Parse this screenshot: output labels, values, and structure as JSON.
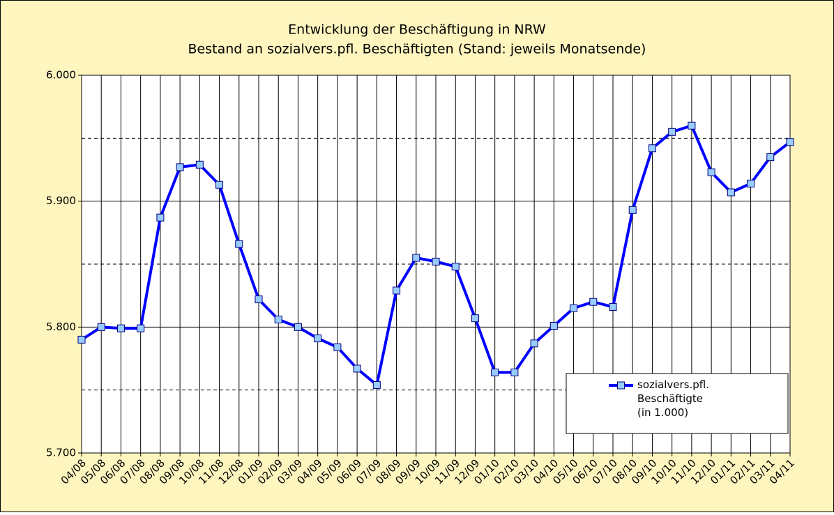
{
  "chart_data": {
    "type": "line",
    "title": "Entwicklung der Beschäftigung in NRW",
    "subtitle": "Bestand an sozialvers.pfl. Beschäftigten (Stand: jeweils Monatsende)",
    "categories": [
      "04/08",
      "05/08",
      "06/08",
      "07/08",
      "08/08",
      "09/08",
      "10/08",
      "11/08",
      "12/08",
      "01/09",
      "02/09",
      "03/09",
      "04/09",
      "05/09",
      "06/09",
      "07/09",
      "08/09",
      "09/09",
      "10/09",
      "11/09",
      "12/09",
      "01/10",
      "02/10",
      "03/10",
      "04/10",
      "05/10",
      "06/10",
      "07/10",
      "08/10",
      "09/10",
      "10/10",
      "11/10",
      "12/10",
      "01/11",
      "02/11",
      "03/11",
      "04/11"
    ],
    "series": [
      {
        "name": "sozialvers.pfl. Beschäftigte (in 1.000)",
        "color": "#0000ff",
        "marker_color": "#99ccff",
        "values": [
          5790,
          5800,
          5799,
          5799,
          5887,
          5927,
          5929,
          5913,
          5866,
          5822,
          5806,
          5800,
          5791,
          5784,
          5767,
          5754,
          5829,
          5855,
          5852,
          5848,
          5807,
          5764,
          5764,
          5787,
          5801,
          5815,
          5820,
          5816,
          5893,
          5942,
          5955,
          5960,
          5923,
          5907,
          5914,
          5935,
          5947
        ]
      }
    ],
    "ylim": [
      5700,
      6000
    ],
    "yticks": [
      {
        "value": 5700,
        "label": "5.700"
      },
      {
        "value": 5800,
        "label": "5.800"
      },
      {
        "value": 5900,
        "label": "5.900"
      },
      {
        "value": 6000,
        "label": "6.000"
      }
    ],
    "minor_yticks": [
      5750,
      5850,
      5950
    ],
    "grid": true,
    "legend": "lower right"
  }
}
